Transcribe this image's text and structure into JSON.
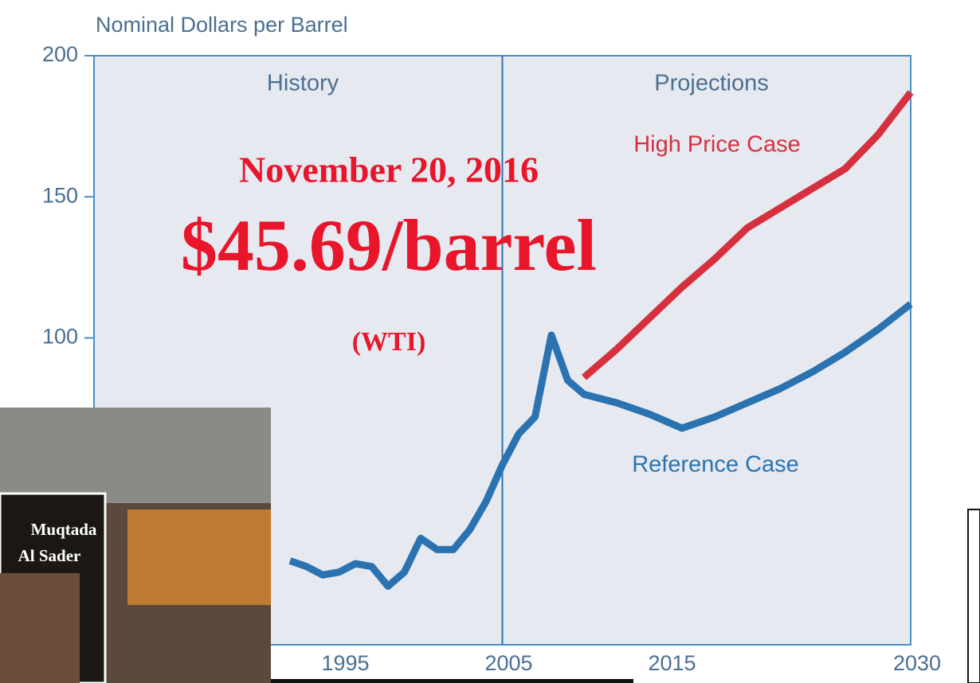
{
  "chart_data": {
    "type": "line",
    "y_axis_label": "Nominal Dollars per Barrel",
    "x": [
      1992,
      1993,
      1994,
      1995,
      1996,
      1997,
      1998,
      1999,
      2000,
      2001,
      2002,
      2003,
      2004,
      2005,
      2006,
      2007,
      2008,
      2009,
      2010,
      2012,
      2014,
      2016,
      2018,
      2020,
      2022,
      2024,
      2026,
      2028,
      2030
    ],
    "series": [
      {
        "name": "Reference Case",
        "color": "#2a72b0",
        "values": [
          21,
          19,
          16,
          17,
          20,
          19,
          12,
          17,
          29,
          25,
          25,
          32,
          42,
          55,
          66,
          72,
          101,
          85,
          80,
          77,
          73,
          68,
          72,
          77,
          82,
          88,
          95,
          103,
          112
        ]
      },
      {
        "name": "High Price Case",
        "color": "#d6303f",
        "values": [
          null,
          null,
          null,
          null,
          null,
          null,
          null,
          null,
          null,
          null,
          null,
          null,
          null,
          null,
          null,
          null,
          null,
          null,
          86,
          96,
          107,
          118,
          128,
          139,
          146,
          153,
          160,
          172,
          187
        ]
      }
    ],
    "xlim": [
      1980,
      2030
    ],
    "xticks": [
      1995,
      2005,
      2015,
      2030
    ],
    "ylim": [
      0,
      200
    ],
    "yticks": [
      100,
      150,
      200
    ],
    "divider": 2005,
    "regions": [
      "History",
      "Projections"
    ],
    "headline": {
      "date": "November 20, 2016",
      "price": "$45.69/barrel",
      "note": "(WTI)"
    },
    "photo_caption": [
      "Muqtada",
      "Al Sader"
    ]
  }
}
